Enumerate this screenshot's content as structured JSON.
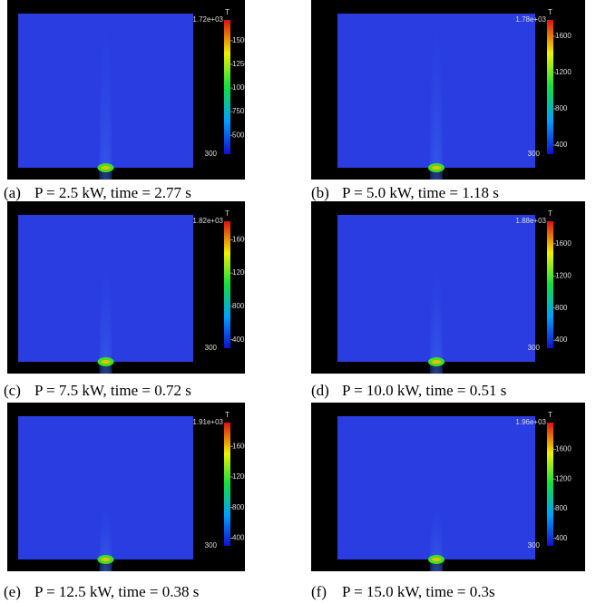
{
  "panels": [
    {
      "label": "(a)",
      "caption": "P = 2.5 kW, time = 2.77 s",
      "colorbar": {
        "title": "T",
        "max": "1.72e+03",
        "min": "300",
        "ticks": [
          "1500",
          "1250",
          "1000",
          "750",
          "500"
        ]
      }
    },
    {
      "label": "(b)",
      "caption": "P = 5.0 kW, time = 1.18 s",
      "colorbar": {
        "title": "T",
        "max": "1.78e+03",
        "min": "300",
        "ticks": [
          "1600",
          "1200",
          "800",
          "400"
        ]
      }
    },
    {
      "label": "(c)",
      "caption": "P = 7.5 kW, time = 0.72 s",
      "colorbar": {
        "title": "T",
        "max": "1.82e+03",
        "min": "300",
        "ticks": [
          "1600",
          "1200",
          "800",
          "400"
        ]
      }
    },
    {
      "label": "(d)",
      "caption": "P = 10.0 kW, time = 0.51 s",
      "colorbar": {
        "title": "T",
        "max": "1.88e+03",
        "min": "300",
        "ticks": [
          "1600",
          "1200",
          "800",
          "400"
        ]
      }
    },
    {
      "label": "(e)",
      "caption": "P = 12.5 kW, time = 0.38 s",
      "colorbar": {
        "title": "T",
        "max": "1.91e+03",
        "min": "300",
        "ticks": [
          "1600",
          "1200",
          "800",
          "400"
        ]
      }
    },
    {
      "label": "(f)",
      "caption": "P = 15.0 kW, time = 0.3s",
      "colorbar": {
        "title": "T",
        "max": "1.96e+03",
        "min": "300",
        "ticks": [
          "1600",
          "1200",
          "800",
          "400"
        ]
      }
    }
  ]
}
